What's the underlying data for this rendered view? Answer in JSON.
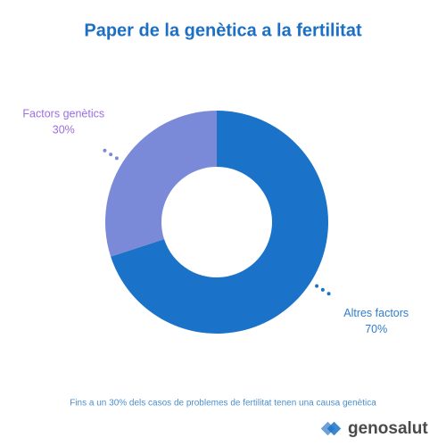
{
  "chart_data": {
    "type": "donut",
    "title": "Paper de la genètica a la fertilitat",
    "categories": [
      "Altres factors",
      "Factors genètics"
    ],
    "values": [
      70,
      30
    ],
    "value_labels": [
      "70%",
      "30%"
    ],
    "colors": [
      "#1a73c8",
      "#7b8ad8"
    ],
    "label_colors": [
      "#2f7dcc",
      "#9a6fe0"
    ]
  },
  "footer": {
    "note": "Fins a un 30% dels casos de problemes de fertilitat tenen una causa genètica",
    "brand": "genosalut"
  }
}
